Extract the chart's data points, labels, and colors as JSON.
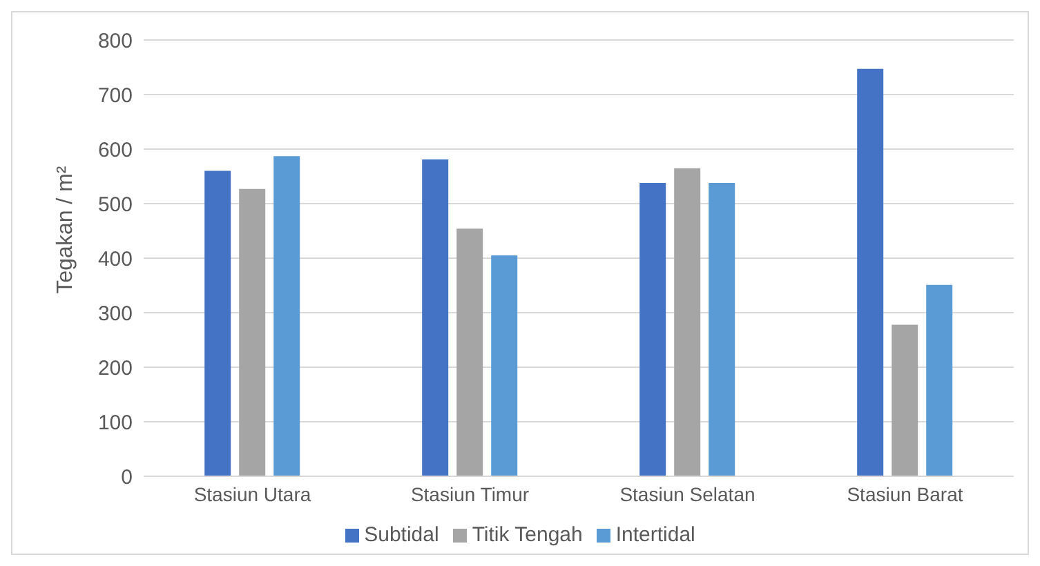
{
  "chart_data": {
    "type": "bar",
    "ylabel": "Tegakan / m²",
    "categories": [
      "Stasiun Utara",
      "Stasiun Timur",
      "Stasiun Selatan",
      "Stasiun Barat"
    ],
    "series": [
      {
        "name": "Subtidal",
        "color": "#4472c4",
        "values": [
          560,
          581,
          538,
          747
        ]
      },
      {
        "name": "Titik Tengah",
        "color": "#a5a5a5",
        "values": [
          527,
          454,
          565,
          278
        ]
      },
      {
        "name": "Intertidal",
        "color": "#5b9bd5",
        "values": [
          587,
          405,
          538,
          351
        ]
      }
    ],
    "ylim": [
      0,
      800
    ],
    "yticks": [
      0,
      100,
      200,
      300,
      400,
      500,
      600,
      700,
      800
    ],
    "grid": "y",
    "legend": "bottom"
  }
}
